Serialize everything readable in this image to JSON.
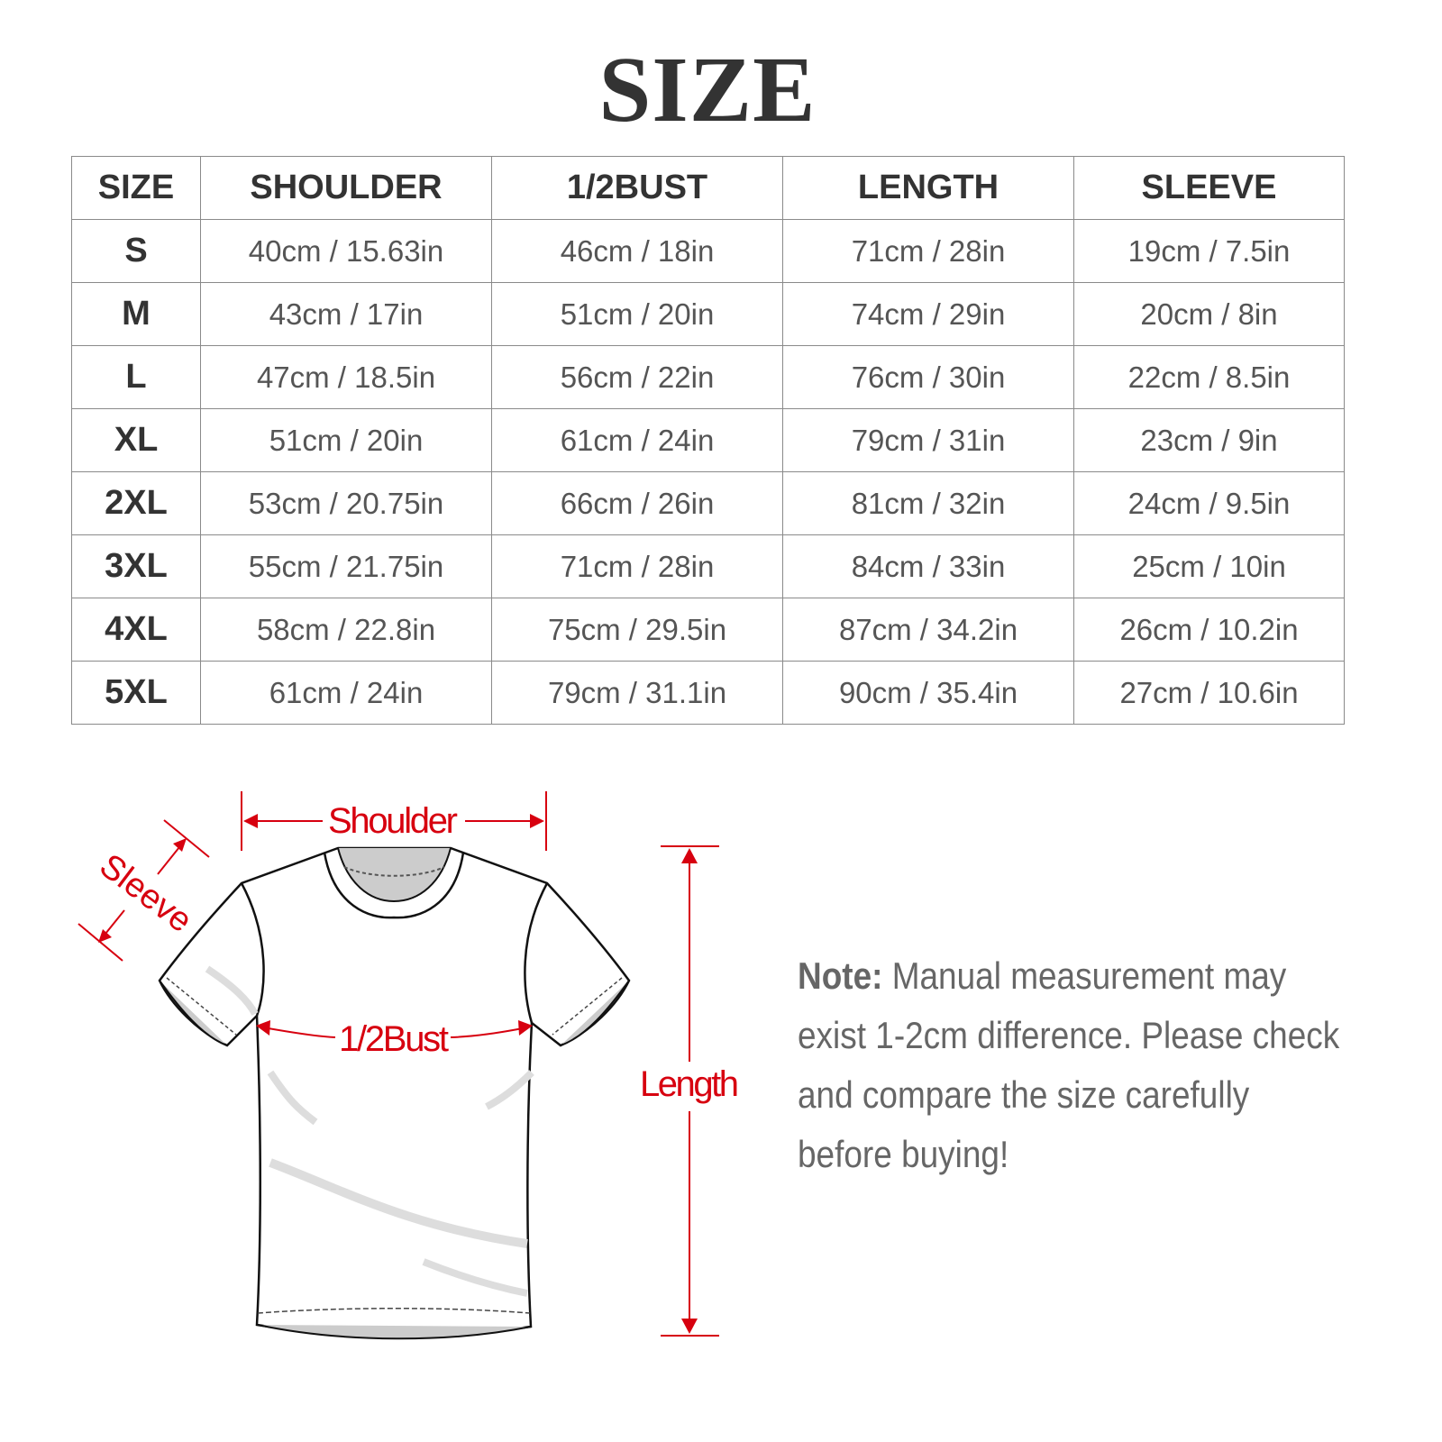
{
  "title": "SIZE",
  "table": {
    "headers": [
      "SIZE",
      "SHOULDER",
      "1/2BUST",
      "LENGTH",
      "SLEEVE"
    ],
    "rows": [
      [
        "S",
        "40cm / 15.63in",
        "46cm / 18in",
        "71cm / 28in",
        "19cm / 7.5in"
      ],
      [
        "M",
        "43cm / 17in",
        "51cm / 20in",
        "74cm / 29in",
        "20cm / 8in"
      ],
      [
        "L",
        "47cm / 18.5in",
        "56cm / 22in",
        "76cm / 30in",
        "22cm / 8.5in"
      ],
      [
        "XL",
        "51cm / 20in",
        "61cm / 24in",
        "79cm / 31in",
        "23cm / 9in"
      ],
      [
        "2XL",
        "53cm / 20.75in",
        "66cm / 26in",
        "81cm / 32in",
        "24cm / 9.5in"
      ],
      [
        "3XL",
        "55cm / 21.75in",
        "71cm / 28in",
        "84cm / 33in",
        "25cm / 10in"
      ],
      [
        "4XL",
        "58cm / 22.8in",
        "75cm / 29.5in",
        "87cm / 34.2in",
        "26cm / 10.2in"
      ],
      [
        "5XL",
        "61cm / 24in",
        "79cm / 31.1in",
        "90cm / 35.4in",
        "27cm / 10.6in"
      ]
    ]
  },
  "diagram": {
    "shoulder": "Shoulder",
    "sleeve": "Sleeve",
    "bust": "1/2Bust",
    "length": "Length",
    "accent": "#d7000f"
  },
  "note": {
    "label": "Note:",
    "text": " Manual measurement may exist 1-2cm difference. Please check and compare the size carefully before buying!"
  }
}
